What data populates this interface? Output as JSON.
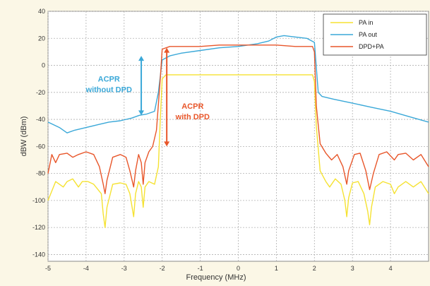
{
  "chart_data": {
    "type": "line",
    "xlabel": "Frequency (MHz)",
    "ylabel": "dBW (dBm)",
    "xlim": [
      -5,
      5
    ],
    "ylim": [
      -145,
      40
    ],
    "xticks": [
      -5,
      -4,
      -3,
      -2,
      -1,
      0,
      1,
      2,
      3,
      4
    ],
    "xtick_labels": [
      "-5",
      "-4",
      "-3",
      "-2",
      "-1",
      "0",
      "1",
      "2",
      "3",
      "4"
    ],
    "yticks": [
      40,
      20,
      0,
      -20,
      -40,
      -60,
      -80,
      -100,
      -120,
      -140
    ],
    "ytick_labels": [
      "40",
      "20",
      "0",
      "-20",
      "-40",
      "-60",
      "-80",
      "-100",
      "-120",
      "-140"
    ],
    "grid": true,
    "legend_position": "top-right",
    "series": [
      {
        "name": "PA in",
        "color": "#f5e232",
        "points": [
          [
            -5,
            -100
          ],
          [
            -4.8,
            -86
          ],
          [
            -4.6,
            -90
          ],
          [
            -4.5,
            -86
          ],
          [
            -4.35,
            -84
          ],
          [
            -4.2,
            -90
          ],
          [
            -4.1,
            -86
          ],
          [
            -3.95,
            -86
          ],
          [
            -3.8,
            -88
          ],
          [
            -3.6,
            -95
          ],
          [
            -3.55,
            -110
          ],
          [
            -3.5,
            -120
          ],
          [
            -3.45,
            -105
          ],
          [
            -3.3,
            -88
          ],
          [
            -3.1,
            -87
          ],
          [
            -2.95,
            -88
          ],
          [
            -2.85,
            -95
          ],
          [
            -2.75,
            -112
          ],
          [
            -2.7,
            -95
          ],
          [
            -2.62,
            -86
          ],
          [
            -2.55,
            -90
          ],
          [
            -2.5,
            -105
          ],
          [
            -2.45,
            -90
          ],
          [
            -2.35,
            -86
          ],
          [
            -2.2,
            -88
          ],
          [
            -2.1,
            -75
          ],
          [
            -2.05,
            -40
          ],
          [
            -2.0,
            -10
          ],
          [
            -1.9,
            -7
          ],
          [
            -1.5,
            -7
          ],
          [
            -1.0,
            -7
          ],
          [
            -0.5,
            -7
          ],
          [
            0,
            -7
          ],
          [
            0.5,
            -7
          ],
          [
            1.0,
            -7
          ],
          [
            1.5,
            -7
          ],
          [
            1.95,
            -7
          ],
          [
            2.0,
            -12
          ],
          [
            2.05,
            -45
          ],
          [
            2.15,
            -78
          ],
          [
            2.3,
            -86
          ],
          [
            2.4,
            -90
          ],
          [
            2.55,
            -84
          ],
          [
            2.7,
            -88
          ],
          [
            2.8,
            -100
          ],
          [
            2.85,
            -112
          ],
          [
            2.9,
            -98
          ],
          [
            3.0,
            -87
          ],
          [
            3.15,
            -86
          ],
          [
            3.3,
            -95
          ],
          [
            3.4,
            -108
          ],
          [
            3.45,
            -118
          ],
          [
            3.5,
            -105
          ],
          [
            3.6,
            -90
          ],
          [
            3.8,
            -86
          ],
          [
            4.0,
            -88
          ],
          [
            4.1,
            -95
          ],
          [
            4.2,
            -90
          ],
          [
            4.4,
            -86
          ],
          [
            4.6,
            -90
          ],
          [
            4.8,
            -86
          ],
          [
            5.0,
            -95
          ]
        ]
      },
      {
        "name": "PA out",
        "color": "#3aa8d8",
        "points": [
          [
            -5,
            -42
          ],
          [
            -4.7,
            -46
          ],
          [
            -4.5,
            -50
          ],
          [
            -4.3,
            -48
          ],
          [
            -4.0,
            -46
          ],
          [
            -3.7,
            -44
          ],
          [
            -3.4,
            -42
          ],
          [
            -3.1,
            -41
          ],
          [
            -2.8,
            -39
          ],
          [
            -2.6,
            -37
          ],
          [
            -2.4,
            -36
          ],
          [
            -2.2,
            -34
          ],
          [
            -2.1,
            -20
          ],
          [
            -2.0,
            4
          ],
          [
            -1.8,
            7
          ],
          [
            -1.5,
            9
          ],
          [
            -1.0,
            11
          ],
          [
            -0.5,
            13
          ],
          [
            0,
            14
          ],
          [
            0.5,
            16
          ],
          [
            0.8,
            18
          ],
          [
            1.0,
            21
          ],
          [
            1.2,
            22
          ],
          [
            1.5,
            21
          ],
          [
            1.8,
            20
          ],
          [
            2.0,
            17
          ],
          [
            2.1,
            -20
          ],
          [
            2.2,
            -23
          ],
          [
            2.5,
            -25
          ],
          [
            3.0,
            -28
          ],
          [
            3.5,
            -31
          ],
          [
            4.0,
            -34
          ],
          [
            4.5,
            -38
          ],
          [
            5.0,
            -42
          ]
        ]
      },
      {
        "name": "DPD+PA",
        "color": "#e8562a",
        "points": [
          [
            -5,
            -80
          ],
          [
            -4.9,
            -66
          ],
          [
            -4.8,
            -72
          ],
          [
            -4.7,
            -66
          ],
          [
            -4.5,
            -65
          ],
          [
            -4.35,
            -68
          ],
          [
            -4.2,
            -66
          ],
          [
            -4.0,
            -64
          ],
          [
            -3.8,
            -66
          ],
          [
            -3.65,
            -75
          ],
          [
            -3.55,
            -88
          ],
          [
            -3.5,
            -95
          ],
          [
            -3.45,
            -85
          ],
          [
            -3.3,
            -68
          ],
          [
            -3.1,
            -66
          ],
          [
            -2.95,
            -68
          ],
          [
            -2.85,
            -78
          ],
          [
            -2.75,
            -90
          ],
          [
            -2.7,
            -78
          ],
          [
            -2.62,
            -66
          ],
          [
            -2.55,
            -72
          ],
          [
            -2.5,
            -88
          ],
          [
            -2.45,
            -72
          ],
          [
            -2.35,
            -64
          ],
          [
            -2.25,
            -60
          ],
          [
            -2.15,
            -48
          ],
          [
            -2.05,
            -10
          ],
          [
            -2.0,
            12
          ],
          [
            -1.8,
            14
          ],
          [
            -1.0,
            14
          ],
          [
            -0.5,
            15
          ],
          [
            0,
            15
          ],
          [
            0.5,
            15
          ],
          [
            1.0,
            15
          ],
          [
            1.5,
            14
          ],
          [
            1.95,
            14
          ],
          [
            2.0,
            10
          ],
          [
            2.05,
            -30
          ],
          [
            2.15,
            -58
          ],
          [
            2.3,
            -65
          ],
          [
            2.45,
            -70
          ],
          [
            2.6,
            -66
          ],
          [
            2.75,
            -75
          ],
          [
            2.85,
            -88
          ],
          [
            2.9,
            -78
          ],
          [
            3.05,
            -66
          ],
          [
            3.2,
            -65
          ],
          [
            3.35,
            -78
          ],
          [
            3.45,
            -92
          ],
          [
            3.55,
            -80
          ],
          [
            3.7,
            -66
          ],
          [
            3.9,
            -64
          ],
          [
            4.1,
            -70
          ],
          [
            4.2,
            -66
          ],
          [
            4.4,
            -65
          ],
          [
            4.6,
            -70
          ],
          [
            4.8,
            -66
          ],
          [
            5.0,
            -75
          ]
        ]
      }
    ],
    "annotations": [
      {
        "id": "acpr-without",
        "lines": [
          "ACPR",
          "without DPD"
        ],
        "color": "#3aa8d8",
        "text_at": [
          -3.4,
          -12
        ],
        "arrow_x": -2.55,
        "arrow_y": [
          7,
          -37
        ]
      },
      {
        "id": "acpr-with",
        "lines": [
          "ACPR",
          "with DPD"
        ],
        "color": "#e8562a",
        "text_at": [
          -1.2,
          -32
        ],
        "arrow_x": -1.88,
        "arrow_y": [
          13,
          -60
        ]
      }
    ]
  }
}
